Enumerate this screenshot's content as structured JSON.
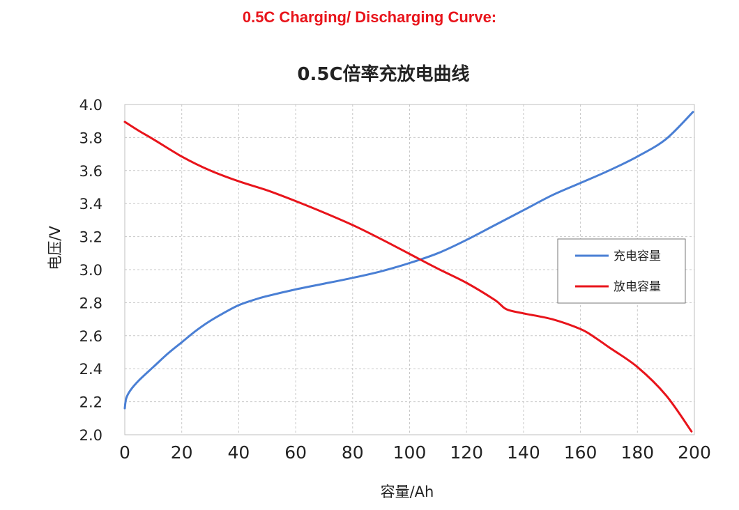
{
  "page": {
    "heading": "0.5C Charging/ Discharging Curve:"
  },
  "colors": {
    "heading": "#e8141b",
    "charge": "#4a7fd4",
    "discharge": "#e8141b",
    "grid": "#c8c8c8"
  },
  "chart_data": {
    "type": "line",
    "title": "0.5C倍率充放电曲线",
    "xlabel": "容量/Ah",
    "ylabel": "电压/V",
    "xlim": [
      0,
      200
    ],
    "ylim": [
      2.0,
      4.0
    ],
    "x_ticks": [
      "0",
      "20",
      "40",
      "60",
      "80",
      "100",
      "120",
      "140",
      "160",
      "180",
      "200"
    ],
    "y_ticks": [
      "2.0",
      "2.2",
      "2.4",
      "2.6",
      "2.8",
      "3.0",
      "3.2",
      "3.4",
      "3.6",
      "3.8",
      "4.0"
    ],
    "grid": true,
    "legend_position": "right",
    "series": [
      {
        "name": "充电容量",
        "color": "#4a7fd4",
        "x": [
          0,
          0.5,
          2,
          5,
          10,
          15,
          20,
          25,
          30,
          35,
          40,
          45,
          50,
          60,
          70,
          80,
          90,
          100,
          110,
          120,
          130,
          140,
          150,
          160,
          170,
          180,
          190,
          199.5
        ],
        "y": [
          2.16,
          2.22,
          2.27,
          2.33,
          2.41,
          2.49,
          2.56,
          2.63,
          2.69,
          2.74,
          2.785,
          2.815,
          2.84,
          2.88,
          2.915,
          2.95,
          2.99,
          3.04,
          3.1,
          3.18,
          3.27,
          3.36,
          3.45,
          3.525,
          3.6,
          3.685,
          3.79,
          3.955
        ]
      },
      {
        "name": "放电容量",
        "color": "#e8141b",
        "x": [
          0,
          5,
          10,
          20,
          30,
          40,
          50,
          60,
          70,
          80,
          90,
          100,
          110,
          120,
          130,
          134,
          140,
          150,
          160,
          165,
          170,
          180,
          190,
          199
        ],
        "y": [
          3.895,
          3.84,
          3.79,
          3.685,
          3.6,
          3.535,
          3.48,
          3.415,
          3.345,
          3.27,
          3.185,
          3.095,
          3.005,
          2.92,
          2.815,
          2.76,
          2.735,
          2.7,
          2.64,
          2.59,
          2.53,
          2.41,
          2.24,
          2.02
        ]
      }
    ]
  }
}
